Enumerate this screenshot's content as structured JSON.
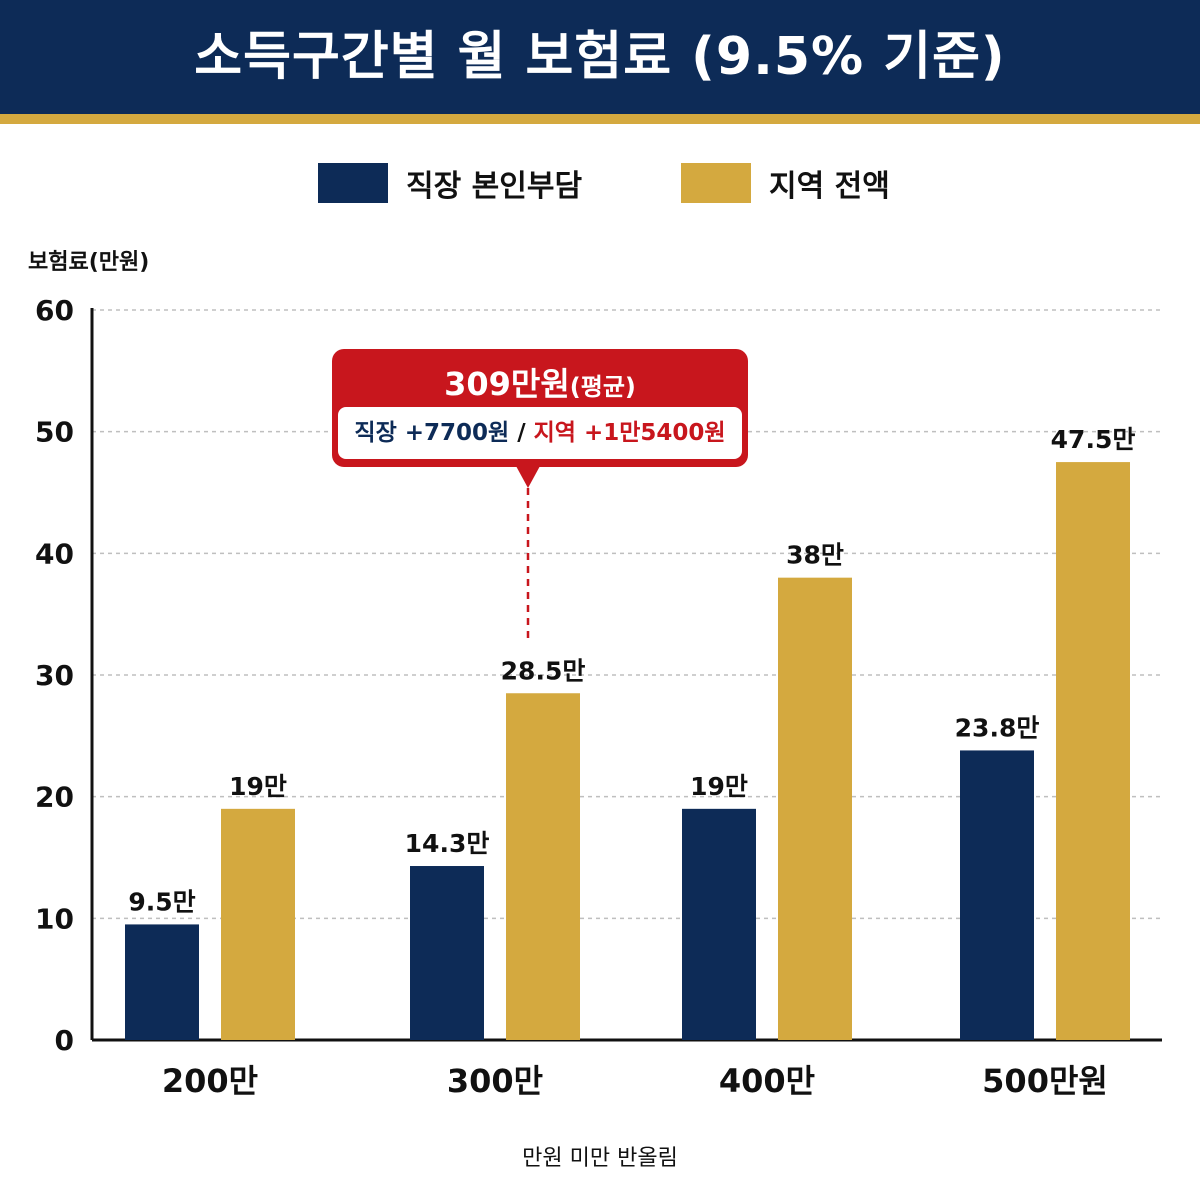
{
  "header": {
    "title": "소득구간별 월 보험료 (9.5% 기준)"
  },
  "legend": [
    {
      "label": "직장 본인부담",
      "color": "#0d2b57"
    },
    {
      "label": "지역 전액",
      "color": "#d4a93f"
    }
  ],
  "callout": {
    "title": "309만원",
    "title_suffix": "(평균)",
    "left_text": "직장 +7700원",
    "separator": " / ",
    "right_text": "지역 +1만5400원",
    "left_color": "#0d2b57",
    "right_color": "#c8161d"
  },
  "footnote": "만원 미만 반올림",
  "chart_data": {
    "type": "bar",
    "ylabel": "보험료(만원)",
    "ylim": [
      0,
      60
    ],
    "yticks": [
      "0",
      "10",
      "20",
      "30",
      "40",
      "50",
      "60"
    ],
    "grid": true,
    "legend_position": "top",
    "categories": [
      "200만",
      "300만",
      "400만",
      "500만원"
    ],
    "series": [
      {
        "name": "직장 본인부담",
        "color": "#0d2b57",
        "values": [
          9.5,
          14.3,
          19,
          23.8
        ],
        "labels": [
          "9.5만",
          "14.3만",
          "19만",
          "23.8만"
        ]
      },
      {
        "name": "지역 전액",
        "color": "#d4a93f",
        "values": [
          19,
          28.5,
          38,
          47.5
        ],
        "labels": [
          "19만",
          "28.5만",
          "38만",
          "47.5만"
        ]
      }
    ]
  }
}
